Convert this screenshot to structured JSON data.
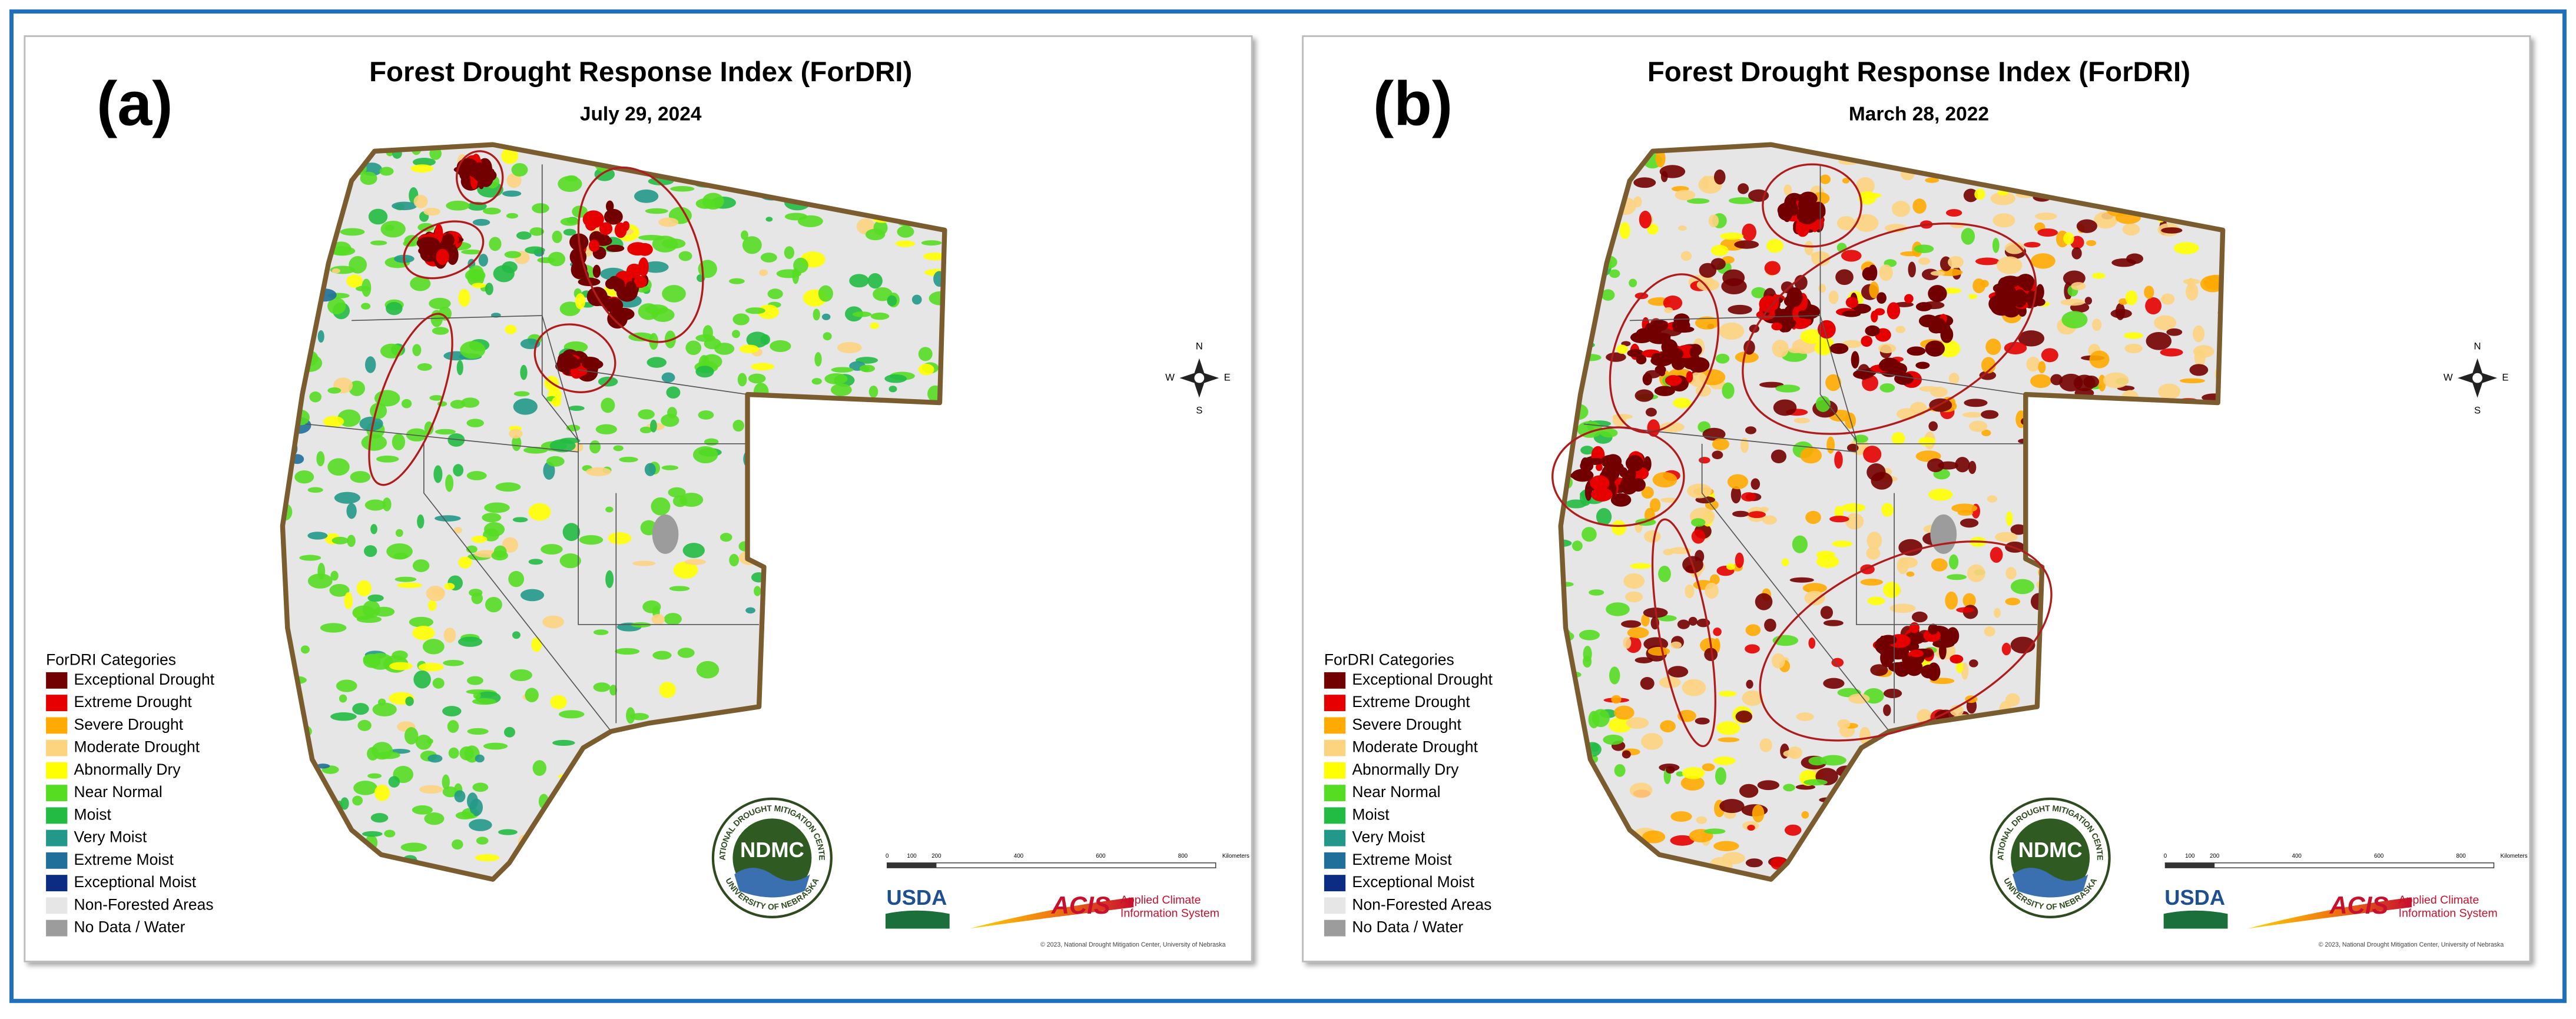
{
  "figure": {
    "panels": [
      {
        "label": "(a)",
        "title": "Forest Drought Response Index (ForDRI)",
        "date": "July 29, 2024",
        "legend_title": "ForDRI Categories",
        "legend": [
          {
            "name": "Exceptional Drought",
            "color": "#730000"
          },
          {
            "name": "Extreme Drought",
            "color": "#e60000"
          },
          {
            "name": "Severe Drought",
            "color": "#ffaa00"
          },
          {
            "name": "Moderate Drought",
            "color": "#fcd37f"
          },
          {
            "name": "Abnormally Dry",
            "color": "#ffff00"
          },
          {
            "name": "Near Normal",
            "color": "#55dd22"
          },
          {
            "name": "Moist",
            "color": "#22bb44"
          },
          {
            "name": "Very Moist",
            "color": "#229988"
          },
          {
            "name": "Extreme Moist",
            "color": "#1f6f9a"
          },
          {
            "name": "Exceptional Moist",
            "color": "#0c2c84"
          },
          {
            "name": "Non-Forested Areas",
            "color": "#e6e6e6"
          },
          {
            "name": "No Data / Water",
            "color": "#9c9c9c"
          }
        ],
        "compass": {
          "n": "N",
          "s": "S",
          "e": "E",
          "w": "W"
        },
        "scale": {
          "ticks": [
            "0",
            "100",
            "200",
            "400",
            "600",
            "800"
          ],
          "unit": "Kilometers"
        },
        "logos": {
          "ndmc": "NDMC",
          "ndmc_ring_top": "NATIONAL DROUGHT MITIGATION CENTER",
          "ndmc_ring_bottom": "UNIVERSITY OF NEBRASKA",
          "usda": "USDA",
          "acis": "ACIS",
          "acis_sub": [
            "Applied Climate",
            "Information System"
          ]
        },
        "copyright": "© 2023, National Drought Mitigation Center, University of Nebraska"
      },
      {
        "label": "(b)",
        "title": "Forest Drought Response Index (ForDRI)",
        "date": "March 28, 2022",
        "legend_title": "ForDRI Categories",
        "legend": [
          {
            "name": "Exceptional Drought",
            "color": "#730000"
          },
          {
            "name": "Extreme Drought",
            "color": "#e60000"
          },
          {
            "name": "Severe Drought",
            "color": "#ffaa00"
          },
          {
            "name": "Moderate Drought",
            "color": "#fcd37f"
          },
          {
            "name": "Abnormally Dry",
            "color": "#ffff00"
          },
          {
            "name": "Near Normal",
            "color": "#55dd22"
          },
          {
            "name": "Moist",
            "color": "#22bb44"
          },
          {
            "name": "Very Moist",
            "color": "#229988"
          },
          {
            "name": "Extreme Moist",
            "color": "#1f6f9a"
          },
          {
            "name": "Exceptional Moist",
            "color": "#0c2c84"
          },
          {
            "name": "Non-Forested Areas",
            "color": "#e6e6e6"
          },
          {
            "name": "No Data / Water",
            "color": "#9c9c9c"
          }
        ],
        "compass": {
          "n": "N",
          "s": "S",
          "e": "E",
          "w": "W"
        },
        "scale": {
          "ticks": [
            "0",
            "100",
            "200",
            "400",
            "600",
            "800"
          ],
          "unit": "Kilometers"
        },
        "logos": {
          "ndmc": "NDMC",
          "ndmc_ring_top": "NATIONAL DROUGHT MITIGATION CENTER",
          "ndmc_ring_bottom": "UNIVERSITY OF NEBRASKA",
          "usda": "USDA",
          "acis": "ACIS",
          "acis_sub": [
            "Applied Climate",
            "Information System"
          ]
        },
        "copyright": "© 2023, National Drought Mitigation Center, University of Nebraska"
      }
    ]
  }
}
